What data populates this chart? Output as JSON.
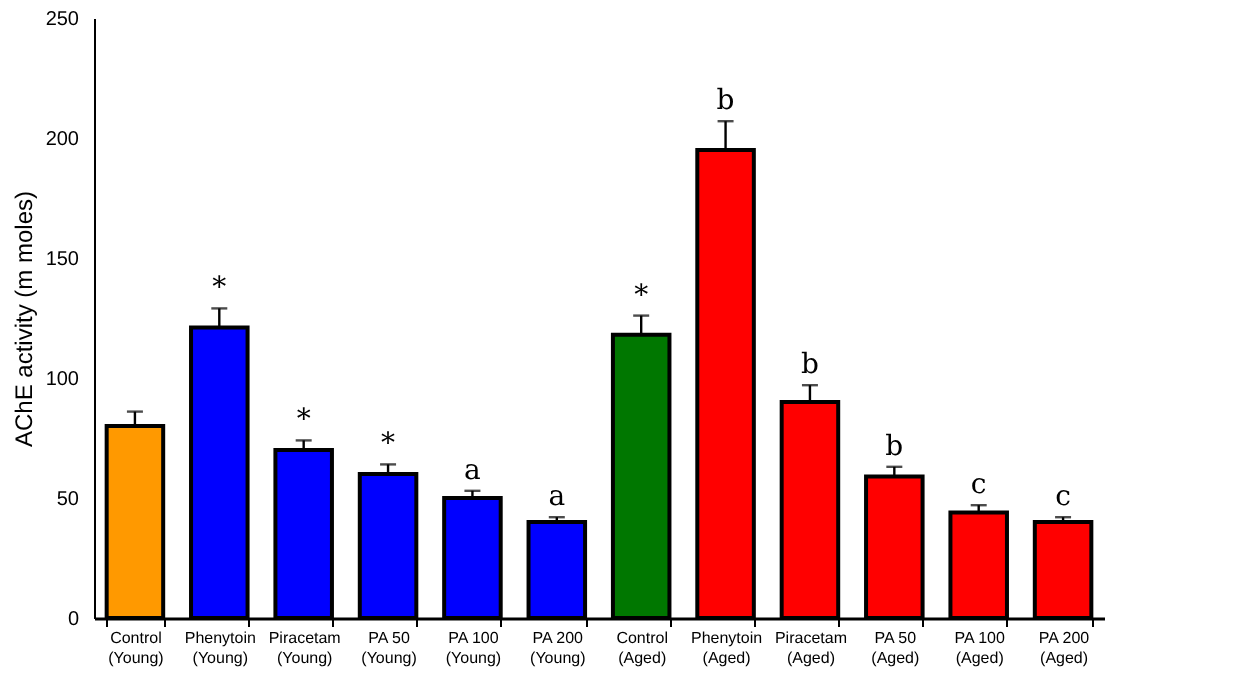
{
  "chart_data": {
    "type": "bar",
    "ylabel": "AChE activity (m moles)",
    "categories": [
      "Control (Young)",
      "Phenytoin (Young)",
      "Piracetam (Young)",
      "PA 50 (Young)",
      "PA 100 (Young)",
      "PA 200 (Young)",
      "Control (Aged)",
      "Phenytoin (Aged)",
      "Piracetam (Aged)",
      "PA 50 (Aged)",
      "PA 100 (Aged)",
      "PA 200 (Aged)"
    ],
    "values": [
      80,
      121,
      70,
      60,
      50,
      40,
      118,
      195,
      90,
      59,
      44,
      40
    ],
    "colors": [
      "#ff9900",
      "#0000ff",
      "#0000ff",
      "#0000ff",
      "#0000ff",
      "#0000ff",
      "#007700",
      "#ff0000",
      "#ff0000",
      "#ff0000",
      "#ff0000",
      "#ff0000"
    ],
    "errors": [
      [
        80,
        86
      ],
      [
        121,
        129
      ],
      [
        70,
        74
      ],
      [
        60,
        64
      ],
      [
        50,
        53
      ],
      [
        40,
        42
      ],
      [
        118,
        126
      ],
      [
        195,
        207
      ],
      [
        90,
        97
      ],
      [
        59,
        63
      ],
      [
        44,
        47
      ],
      [
        40,
        42
      ]
    ],
    "annotations": [
      {
        "text": "*",
        "x": "Phenytoin (Young)",
        "y": 129
      },
      {
        "text": "*",
        "x": "Piracetam (Young)",
        "y": 74
      },
      {
        "text": "*",
        "x": "PA 50 (Young)",
        "y": 64
      },
      {
        "text": "a",
        "x": "PA 100 (Young)",
        "y": 53
      },
      {
        "text": "a",
        "x": "PA 200 (Young)",
        "y": 42
      },
      {
        "text": "*",
        "x": "Control (Aged)",
        "y": 126
      },
      {
        "text": "b",
        "x": "Phenytoin (Aged)",
        "y": 207
      },
      {
        "text": "b",
        "x": "Piracetam (Aged)",
        "y": 97
      },
      {
        "text": "b",
        "x": "PA 50 (Aged)",
        "y": 63
      },
      {
        "text": "c",
        "x": "PA 100 (Aged)",
        "y": 47
      },
      {
        "text": "c",
        "x": "PA 200 (Aged)",
        "y": 42
      }
    ],
    "ylim": [
      0,
      250
    ],
    "yticks": [
      0,
      50,
      100,
      150,
      200,
      250
    ],
    "grid": false
  }
}
